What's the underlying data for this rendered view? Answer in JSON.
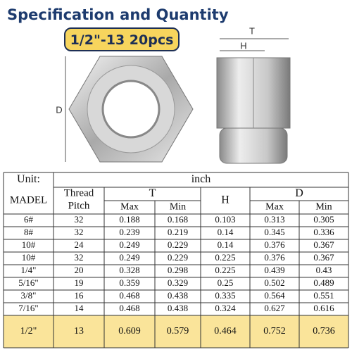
{
  "header": {
    "title": "Specification and Quantity",
    "badge": "1/2\"-13 20pcs"
  },
  "diagram": {
    "front_label": "D",
    "side_label_t": "T",
    "side_label_h": "H"
  },
  "table": {
    "unit_label": "Unit:",
    "unit": "inch",
    "columns": {
      "model": "MADEL",
      "thread": "Thread",
      "pitch": "Pitch",
      "t": "T",
      "h": "H",
      "d": "D",
      "max": "Max",
      "min": "Min"
    },
    "rows": [
      [
        "6#",
        "32",
        "0.188",
        "0.168",
        "0.103",
        "0.313",
        "0.305"
      ],
      [
        "8#",
        "32",
        "0.239",
        "0.219",
        "0.14",
        "0.345",
        "0.336"
      ],
      [
        "10#",
        "24",
        "0.249",
        "0.229",
        "0.14",
        "0.376",
        "0.367"
      ],
      [
        "10#",
        "32",
        "0.249",
        "0.229",
        "0.225",
        "0.376",
        "0.367"
      ],
      [
        "1/4\"",
        "20",
        "0.328",
        "0.298",
        "0.225",
        "0.439",
        "0.43"
      ],
      [
        "5/16\"",
        "19",
        "0.359",
        "0.329",
        "0.25",
        "0.502",
        "0.489"
      ],
      [
        "3/8\"",
        "16",
        "0.468",
        "0.438",
        "0.335",
        "0.564",
        "0.551"
      ],
      [
        "7/16\"",
        "14",
        "0.468",
        "0.438",
        "0.324",
        "0.627",
        "0.616"
      ],
      [
        "1/2\"",
        "13",
        "0.609",
        "0.579",
        "0.464",
        "0.752",
        "0.736"
      ]
    ]
  }
}
